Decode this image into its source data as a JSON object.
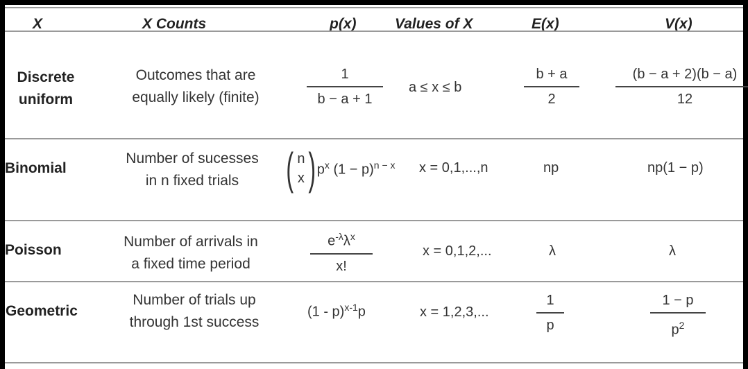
{
  "headers": [
    "X",
    "X Counts",
    "p(x)",
    "Values of X",
    "E(x)",
    "V(x)"
  ],
  "rows": [
    {
      "name_lines": [
        "Discrete",
        "uniform"
      ],
      "counts_lines": [
        "Outcomes that are",
        "equally likely (finite)"
      ],
      "px_num": "1",
      "px_den": "b − a + 1",
      "values": "a ≤ x ≤ b",
      "ex_num": "b + a",
      "ex_den": "2",
      "vx_num": "(b − a + 2)(b − a)",
      "vx_den": "12"
    },
    {
      "name_lines": [
        "Binomial"
      ],
      "counts_lines": [
        "Number of sucesses",
        "in n fixed trials"
      ],
      "binom_top": "n",
      "binom_bottom": "x",
      "px_base1": "p",
      "px_exp1": "x",
      "px_base2": "(1 − p)",
      "px_exp2": "n − x",
      "values": "x = 0,1,...,n",
      "ex": "np",
      "vx": "np(1 − p)"
    },
    {
      "name_lines": [
        "Poisson"
      ],
      "counts_lines": [
        "Number of arrivals in",
        "a fixed time period"
      ],
      "px_num_base": "e",
      "px_num_exp1": "-λ",
      "px_num_lambda": "λ",
      "px_num_exp2": "x",
      "px_den": "x!",
      "values": "x = 0,1,2,...",
      "ex": "λ",
      "vx": "λ"
    },
    {
      "name_lines": [
        "Geometric"
      ],
      "counts_lines": [
        "Number of trials up",
        "through 1st success"
      ],
      "px_base": "(1 - p)",
      "px_exp": "x-1",
      "px_tail": "p",
      "values": "x = 1,2,3,...",
      "ex_num": "1",
      "ex_den": "p",
      "vx_num": "1 − p",
      "vx_den_base": "p",
      "vx_den_exp": "2"
    }
  ]
}
